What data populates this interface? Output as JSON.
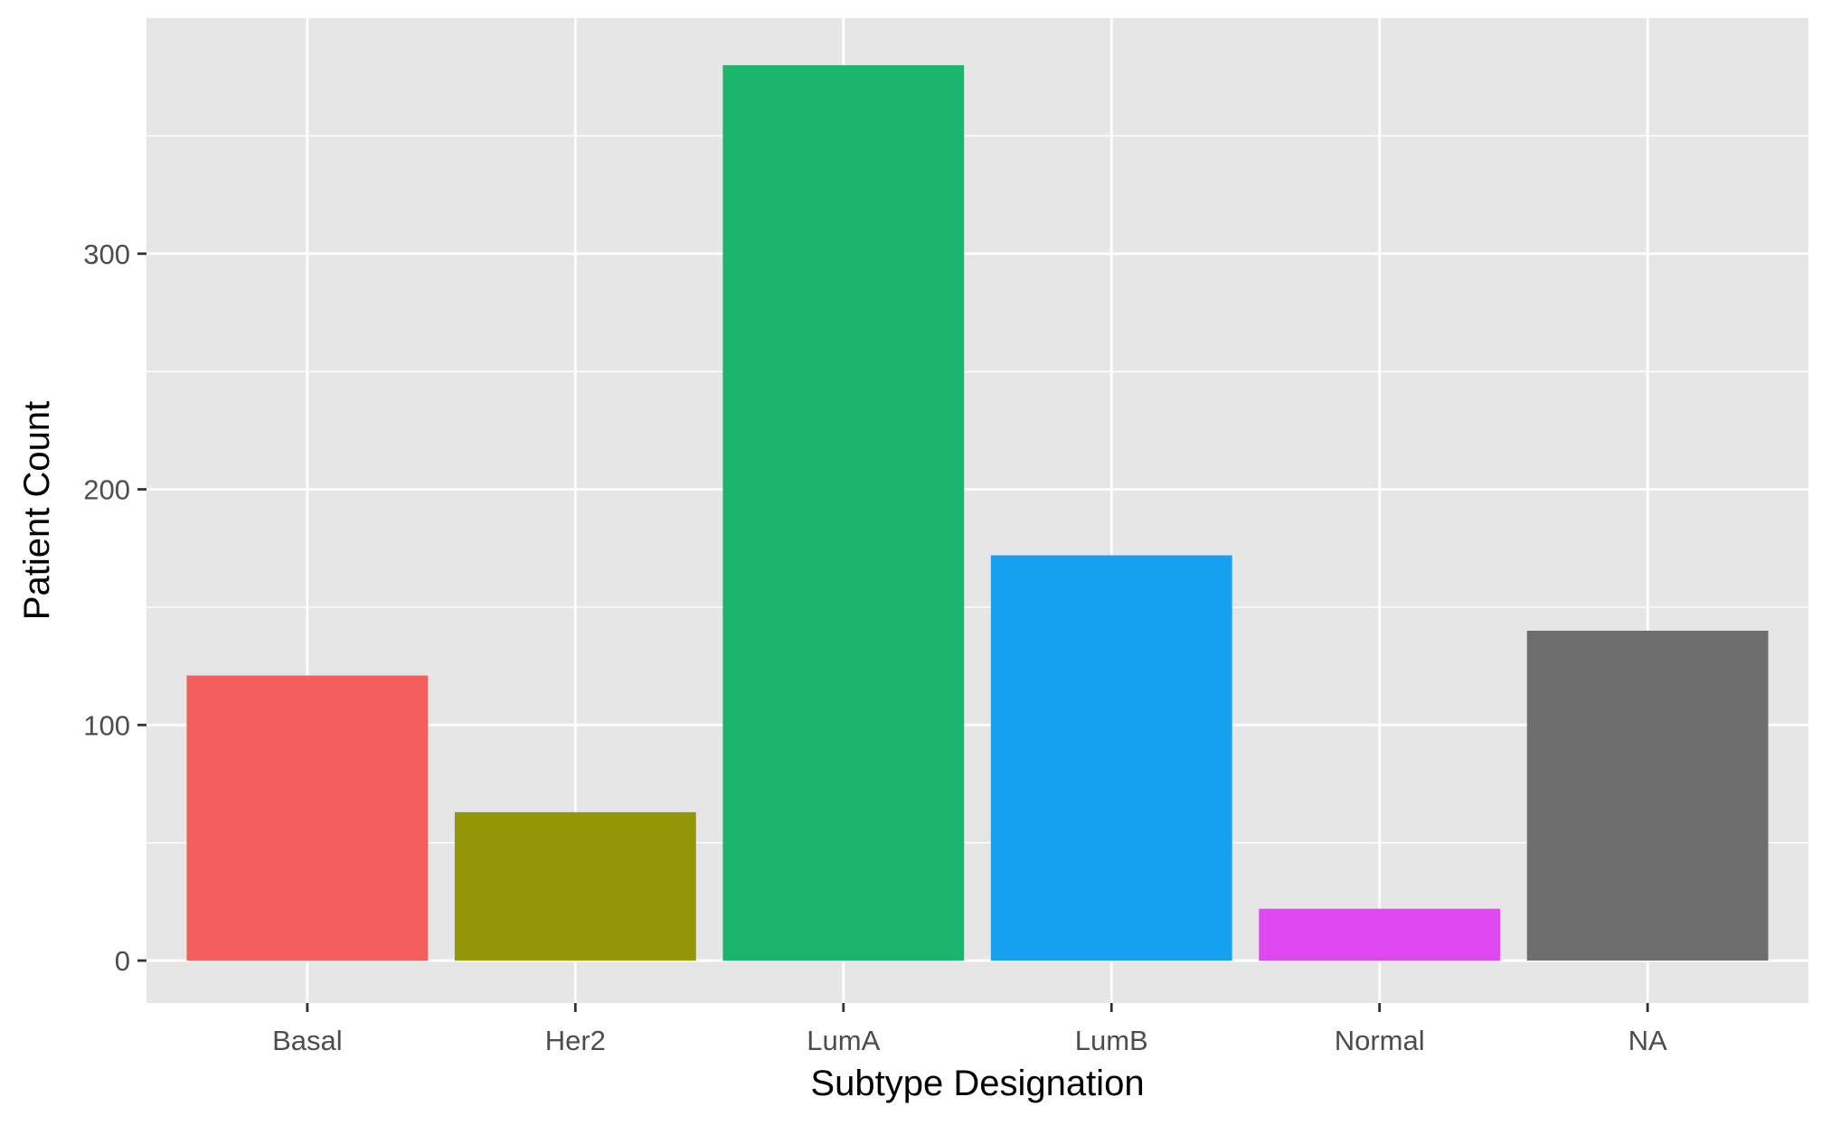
{
  "chart_data": {
    "type": "bar",
    "xlabel": "Subtype Designation",
    "ylabel": "Patient Count",
    "categories": [
      "Basal",
      "Her2",
      "LumA",
      "LumB",
      "Normal",
      "NA"
    ],
    "values": [
      121,
      63,
      380,
      172,
      22,
      140
    ],
    "colors": [
      "#F25F5C",
      "#929707",
      "#1BB66D",
      "#16A0F0",
      "#DE49F2",
      "#6E6E6E"
    ],
    "yticks": [
      0,
      100,
      200,
      300
    ],
    "ylim": [
      -18,
      400
    ],
    "grid": true,
    "panel_background": "#E6E6E6",
    "legend": "none"
  }
}
